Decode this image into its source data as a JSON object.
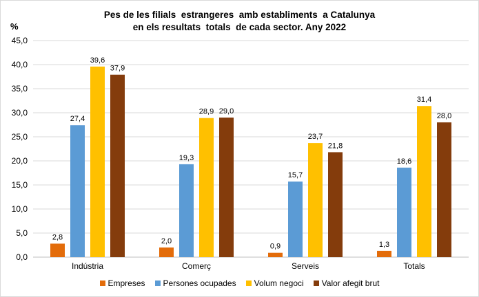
{
  "chart_data": {
    "type": "bar",
    "title_line1": "Pes de les filials  estrangeres  amb establiments  a Catalunya",
    "title_line2": "en els resultats  totals  de cada sector. Any 2022",
    "ylabel": "%",
    "ylim": [
      0,
      45
    ],
    "ytick_step": 5,
    "ytick_labels": [
      "0,0",
      "5,0",
      "10,0",
      "15,0",
      "20,0",
      "25,0",
      "30,0",
      "35,0",
      "40,0",
      "45,0"
    ],
    "categories": [
      "Indústria",
      "Comerç",
      "Serveis",
      "Totals"
    ],
    "series": [
      {
        "name": "Empreses",
        "color": "#e36c0a",
        "values": [
          2.8,
          2.0,
          0.9,
          1.3
        ],
        "labels": [
          "2,8",
          "2,0",
          "0,9",
          "1,3"
        ]
      },
      {
        "name": "Persones ocupades",
        "color": "#5b9bd5",
        "values": [
          27.4,
          19.3,
          15.7,
          18.6
        ],
        "labels": [
          "27,4",
          "19,3",
          "15,7",
          "18,6"
        ]
      },
      {
        "name": "Volum negoci",
        "color": "#ffc000",
        "values": [
          39.6,
          28.9,
          23.7,
          31.4
        ],
        "labels": [
          "39,6",
          "28,9",
          "23,7",
          "31,4"
        ]
      },
      {
        "name": "Valor afegit brut",
        "color": "#843c0c",
        "values": [
          37.9,
          29.0,
          21.8,
          28.0
        ],
        "labels": [
          "37,9",
          "29,0",
          "21,8",
          "28,0"
        ]
      }
    ],
    "grid": true,
    "legend_position": "bottom"
  }
}
